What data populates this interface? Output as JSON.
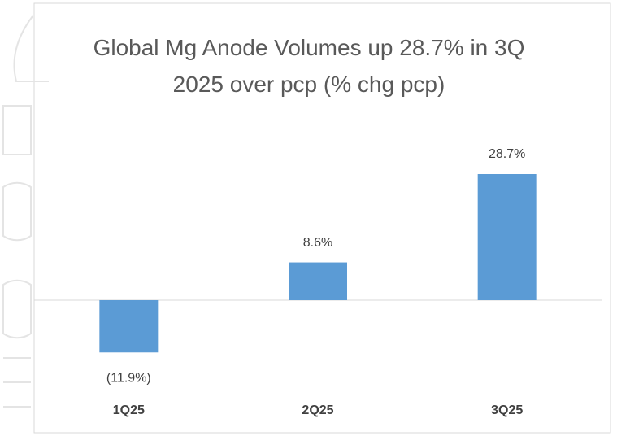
{
  "chart_data": {
    "type": "bar",
    "title": "Global Mg Anode Volumes up 28.7% in 3Q 2025 over pcp (% chg pcp)",
    "categories": [
      "1Q25",
      "2Q25",
      "3Q25"
    ],
    "values": [
      -11.9,
      8.6,
      28.7
    ],
    "value_labels": [
      "(11.9%)",
      "8.6%",
      "28.7%"
    ],
    "color": "#5b9bd5"
  }
}
